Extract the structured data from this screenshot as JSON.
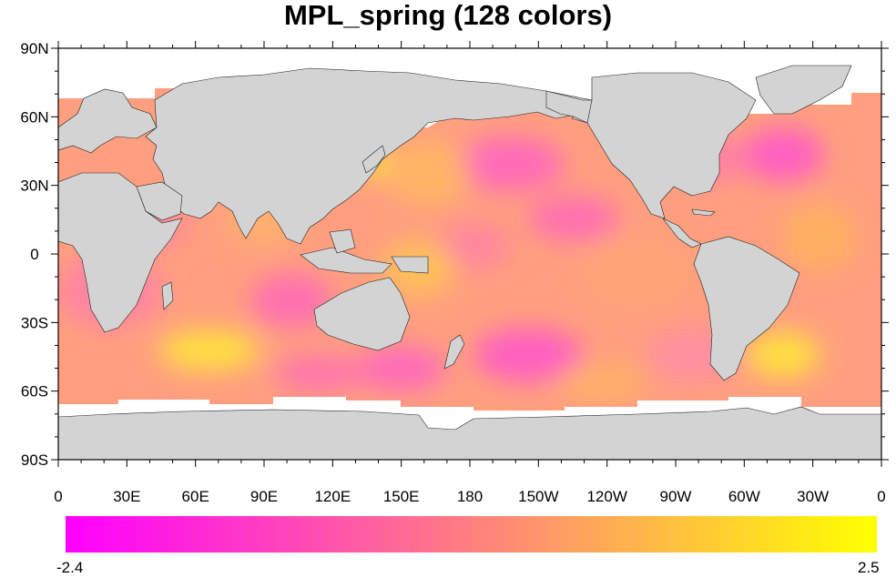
{
  "title": "MPL_spring (128 colors)",
  "map": {
    "projection": "cylindrical-equidistant",
    "center_longitude": 180,
    "lon_range": [
      0,
      360
    ],
    "lat_range": [
      -90,
      90
    ],
    "land_color": "#d3d3d3",
    "ocean_missing_color": "#ffffff",
    "lat_tick_labels": [
      "90N",
      "60N",
      "30N",
      "0",
      "30S",
      "60S",
      "90S"
    ],
    "lon_tick_labels": [
      "0",
      "30E",
      "60E",
      "90E",
      "120E",
      "150E",
      "180",
      "150W",
      "120W",
      "90W",
      "60W",
      "30W",
      "0"
    ]
  },
  "colorbar": {
    "colormap": "MPL_spring",
    "n_colors": 128,
    "color_min": "#ff00ff",
    "color_max": "#ffff00",
    "min_label": "-2.4",
    "max_label": "2.5"
  }
}
